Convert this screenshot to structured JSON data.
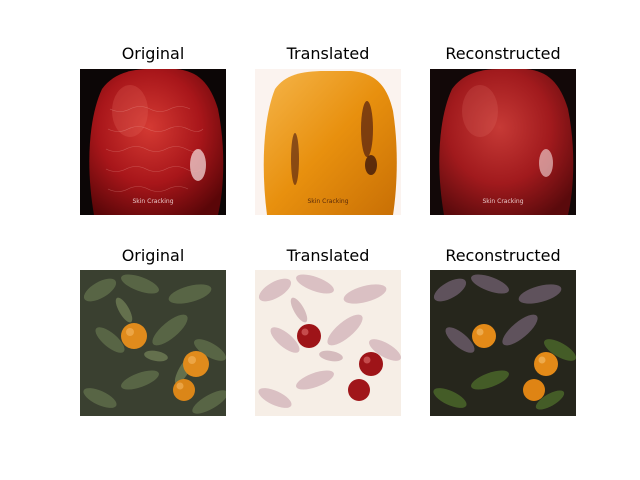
{
  "figure": {
    "rows": [
      {
        "subject": "apple-skin-cracking",
        "panels": [
          {
            "title": "Original",
            "caption": "Skin Cracking"
          },
          {
            "title": "Translated",
            "caption": "Skin Cracking"
          },
          {
            "title": "Reconstructed",
            "caption": "Skin Cracking"
          }
        ]
      },
      {
        "subject": "orange-tree",
        "panels": [
          {
            "title": "Original"
          },
          {
            "title": "Translated"
          },
          {
            "title": "Reconstructed"
          }
        ]
      }
    ]
  }
}
